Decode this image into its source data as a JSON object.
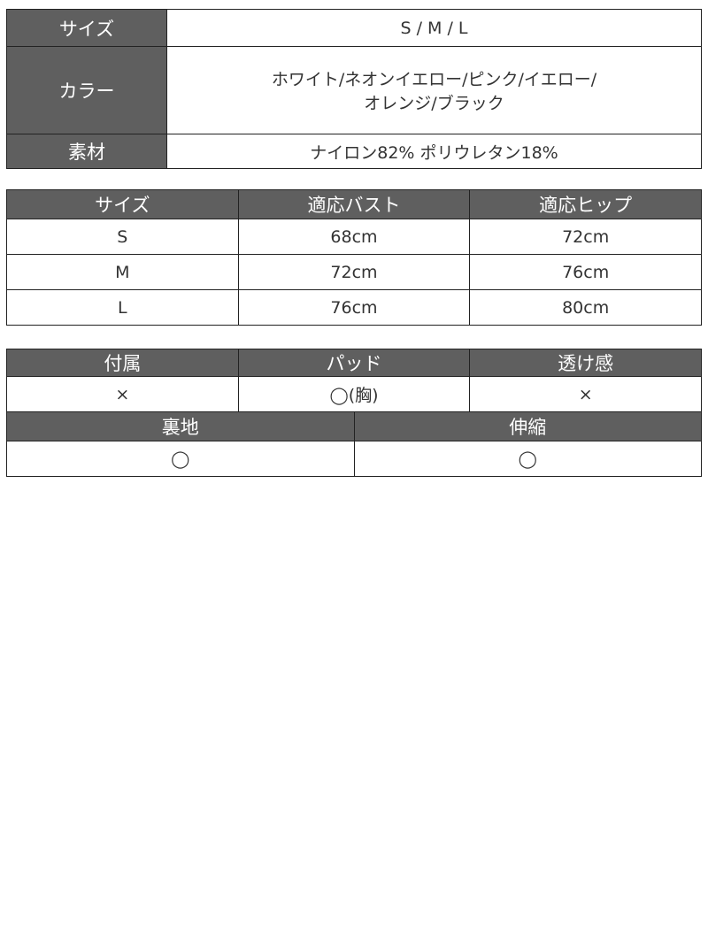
{
  "spec": [
    {
      "label": "サイズ",
      "value": "S / M / L"
    },
    {
      "label": "カラー",
      "value_lines": [
        "ホワイト/ネオンイエロー/ピンク/イエロー/",
        "オレンジ/ブラック"
      ]
    },
    {
      "label": "素材",
      "value": "ナイロン82% ポリウレタン18%"
    }
  ],
  "size_table": {
    "headers": [
      "サイズ",
      "適応バスト",
      "適応ヒップ"
    ],
    "rows": [
      [
        "S",
        "68cm",
        "72cm"
      ],
      [
        "M",
        "72cm",
        "76cm"
      ],
      [
        "L",
        "76cm",
        "80cm"
      ]
    ]
  },
  "features1": {
    "headers": [
      "付属",
      "パッド",
      "透け感"
    ],
    "values": [
      "×",
      "◯(胸)",
      "×"
    ]
  },
  "features2": {
    "headers": [
      "裏地",
      "伸縮"
    ],
    "values": [
      "◯",
      "◯"
    ]
  },
  "colors": {
    "header_bg": "#5f5f5f",
    "border": "#222222"
  }
}
